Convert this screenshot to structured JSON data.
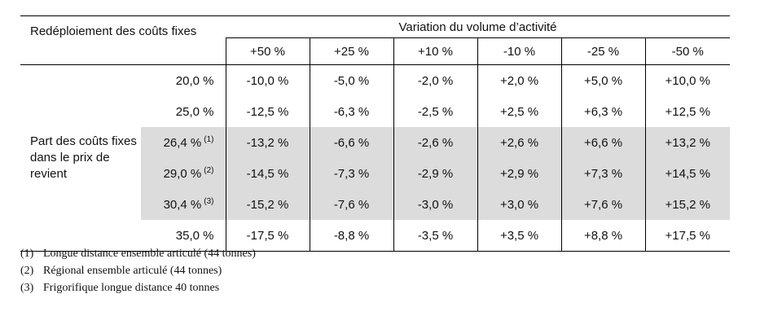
{
  "table": {
    "header_title": "Redéploiement des coûts fixes",
    "group_header": "Variation du volume d’activité",
    "columns": [
      "+50 %",
      "+25 %",
      "+10 %",
      "-10 %",
      "-25 %",
      "-50 %"
    ],
    "row_group_label": "Part des coûts fixes dans le prix de revient",
    "rows": [
      {
        "label": "20,0 %",
        "note": "",
        "shaded": false,
        "values": [
          "-10,0 %",
          "-5,0 %",
          "-2,0 %",
          "+2,0 %",
          "+5,0 %",
          "+10,0 %"
        ]
      },
      {
        "label": "25,0 %",
        "note": "",
        "shaded": false,
        "values": [
          "-12,5 %",
          "-6,3 %",
          "-2,5 %",
          "+2,5 %",
          "+6,3 %",
          "+12,5 %"
        ]
      },
      {
        "label": "26,4 %",
        "note": "(1)",
        "shaded": true,
        "values": [
          "-13,2 %",
          "-6,6 %",
          "-2,6 %",
          "+2,6 %",
          "+6,6 %",
          "+13,2 %"
        ]
      },
      {
        "label": "29,0 %",
        "note": "(2)",
        "shaded": true,
        "values": [
          "-14,5 %",
          "-7,3 %",
          "-2,9 %",
          "+2,9 %",
          "+7,3 %",
          "+14,5 %"
        ]
      },
      {
        "label": "30,4 %",
        "note": "(3)",
        "shaded": true,
        "values": [
          "-15,2 %",
          "-7,6 %",
          "-3,0 %",
          "+3,0 %",
          "+7,6 %",
          "+15,2 %"
        ]
      },
      {
        "label": "35,0 %",
        "note": "",
        "shaded": false,
        "values": [
          "-17,5 %",
          "-8,8 %",
          "-3,5 %",
          "+3,5 %",
          "+8,8 %",
          "+17,5 %"
        ]
      }
    ]
  },
  "footnotes": [
    {
      "num": "(1)",
      "text": "Longue distance ensemble articulé (44 tonnes)"
    },
    {
      "num": "(2)",
      "text": "Régional ensemble articulé (44 tonnes)"
    },
    {
      "num": "(3)",
      "text": "Frigorifique longue distance 40 tonnes"
    }
  ]
}
